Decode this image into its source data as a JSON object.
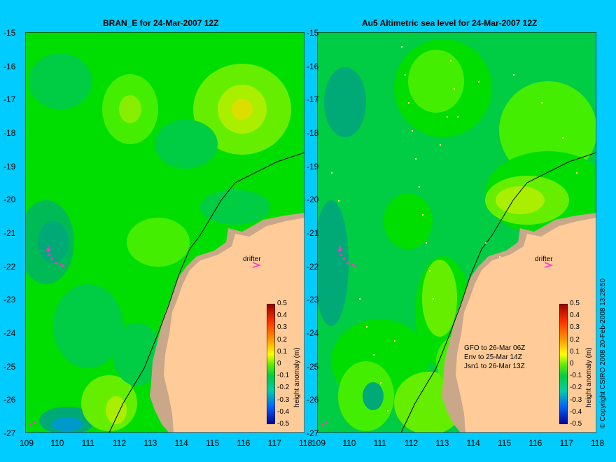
{
  "panels": [
    {
      "title": "BRAN_E for 24-Mar-2007 12Z",
      "drifter_label": "drifter"
    },
    {
      "title": "Au5 Altimetric sea level  for 24-Mar-2007 12Z",
      "drifter_label": "drifter"
    }
  ],
  "y_ticks": [
    "-15",
    "-16",
    "-17",
    "-18",
    "-19",
    "-20",
    "-21",
    "-22",
    "-23",
    "-24",
    "-25",
    "-26",
    "-27"
  ],
  "x_ticks": [
    "109",
    "110",
    "111",
    "112",
    "113",
    "114",
    "115",
    "116",
    "117",
    "118"
  ],
  "colorbar": {
    "ticks": [
      "0.5",
      "0.4",
      "0.3",
      "0.2",
      "0.1",
      "0",
      "-0.1",
      "-0.2",
      "-0.3",
      "-0.4",
      "-0.5"
    ],
    "label": "height anomaly (m)"
  },
  "legend_lines": [
    "GFO to 26-Mar 06Z",
    "Env to 25-Mar 14Z",
    "Jsn1 to 26-Mar 13Z"
  ],
  "credit": "© Copyright CSIRO 2008  20-Feb-2008 13:28:50",
  "colors": {
    "background": "#00ccff",
    "land": "#ffcc99",
    "shelf": "#c8a888",
    "drifter_track": "#ff33cc"
  }
}
